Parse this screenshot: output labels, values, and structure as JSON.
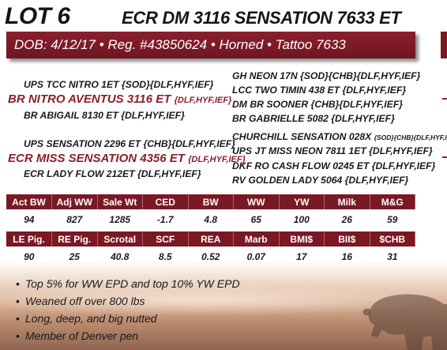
{
  "lot": "LOT 6",
  "animal_name": "ECR DM 3116 SENSATION 7633 ET",
  "banner": "DOB: 4/12/17 • Reg. #43850624 • Horned • Tattoo 7633",
  "pedigree": {
    "sire_sire": "UPS TCC NITRO 1ET {SOD}{DLF,HYF,IEF}",
    "sire": "BR NITRO AVENTUS 3116 ET",
    "sire_tag": "{DLF,HYF,IEF}",
    "sire_dam": "BR ABIGAIL 8130 ET {DLF,HYF,IEF}",
    "dam_sire": "UPS SENSATION 2296 ET {CHB}{DLF,HYF,IEF}",
    "dam": "ECR MISS SENSATION 4356 ET",
    "dam_tag": "{DLF,HYF,IEF}",
    "dam_dam": "ECR LADY FLOW 212ET {DLF,HYF,IEF}",
    "ss_sire": "GH NEON 17N {SOD}{CHB}{DLF,HYF,IEF}",
    "ss_dam": "LCC TWO TIMIN 438 ET {DLF,HYF,IEF}",
    "sd_sire": "DM BR SOONER {CHB}{DLF,HYF,IEF}",
    "sd_dam": "BR GABRIELLE 5082 {DLF,HYF,IEF}",
    "ds_sire": "CHURCHILL SENSATION 028X",
    "ds_sire_tag": "{SOD}{CHB}{DLF,HYF,IEF}",
    "ds_dam": "UPS JT MISS NEON 7811 1ET {DLF,HYF,IEF}",
    "dd_sire": "DKF RO CASH FLOW 0245 ET {DLF,HYF,IEF}",
    "dd_dam": "RV GOLDEN LADY 5064 {DLF,HYF,IEF}"
  },
  "table1": {
    "headers": [
      "Act BW",
      "Adj WW",
      "Sale Wt",
      "CED",
      "BW",
      "WW",
      "YW",
      "Milk",
      "M&G"
    ],
    "values": [
      "94",
      "827",
      "1285",
      "-1.7",
      "4.8",
      "65",
      "100",
      "26",
      "59"
    ]
  },
  "table2": {
    "headers": [
      "LE Pig.",
      "RE Pig.",
      "Scrotal",
      "SCF",
      "REA",
      "Marb",
      "BMI$",
      "BII$",
      "$CHB"
    ],
    "values": [
      "90",
      "25",
      "40.8",
      "8.5",
      "0.52",
      "0.07",
      "17",
      "16",
      "31"
    ]
  },
  "notes": [
    "Top 5% for WW EPD and top 10% YW EPD",
    "Weaned off over 800 lbs",
    "Long, deep, and big nutted",
    "Member of Denver pen"
  ],
  "colors": {
    "accent": "#7a1824",
    "banner": "#8a1f2c"
  }
}
